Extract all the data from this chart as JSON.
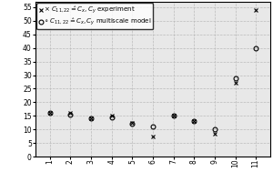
{
  "x_vals": [
    1,
    2,
    3,
    4,
    5,
    6,
    7,
    8,
    9,
    10,
    11
  ],
  "x_labels": [
    "1",
    "2",
    "3",
    "4",
    "5",
    "6",
    "7",
    "8",
    "9",
    "10",
    "11"
  ],
  "experiment_y": [
    16,
    16,
    14,
    15,
    12.5,
    7.5,
    15,
    13,
    8.5,
    27,
    54
  ],
  "model_y": [
    16,
    15.5,
    14,
    14.5,
    12,
    11,
    15,
    13,
    10,
    29,
    40
  ],
  "ylim": [
    0,
    57
  ],
  "xlim": [
    0.3,
    11.7
  ],
  "yticks": [
    0,
    5,
    10,
    15,
    20,
    25,
    30,
    35,
    40,
    45,
    50,
    55
  ],
  "color": "black",
  "grid_color": "#bbbbbb",
  "bg_color": "#e8e8e8",
  "fontsize_legend": 5.0,
  "fontsize_ticks": 5.5,
  "markersize": 3.5
}
